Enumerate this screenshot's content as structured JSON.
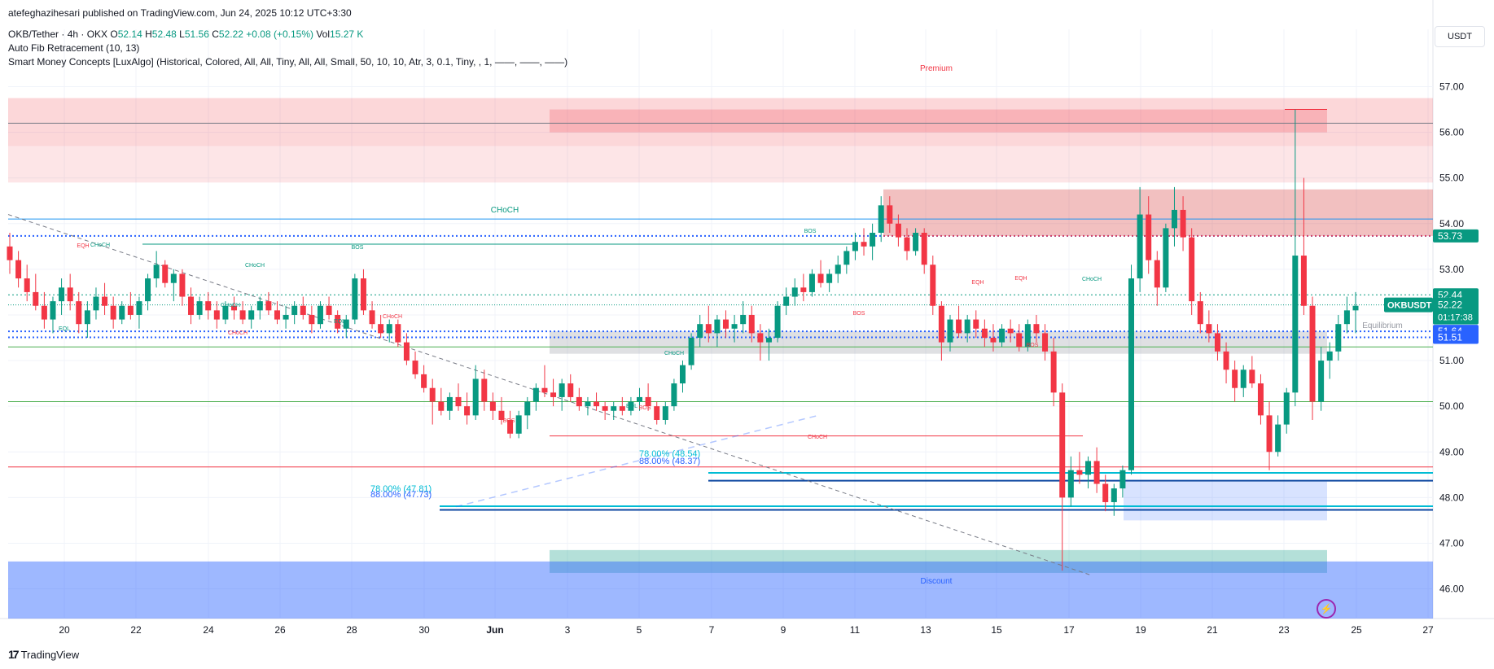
{
  "header": {
    "publisher": "atefeghazihesari published on TradingView.com, Jun 24, 2025 10:12 UTC+3:30",
    "symbol_line": "OKB/Tether · 4h · OKX",
    "o_label": "O",
    "o": "52.14",
    "h_label": "H",
    "h": "52.48",
    "l_label": "L",
    "l": "51.56",
    "c_label": "C",
    "c": "52.22",
    "change": "+0.08 (+0.15%)",
    "vol_label": "Vol",
    "vol": "15.27 K",
    "indicator1": "Auto Fib Retracement (10, 13)",
    "indicator2": "Smart Money Concepts [LuxAlgo] (Historical, Colored, All, All, Tiny, All, All, Small, 50, 10, 10, Atr, 3, 0.1, Tiny, , 1, ——, ——, ——)"
  },
  "currency_button": "USDT",
  "footer_logo": "TradingView",
  "footer_mark": "17",
  "bolt_icon": "⚡",
  "chart_data": {
    "type": "candlestick",
    "symbol": "OKBUSDT",
    "current_price": "52.22",
    "countdown": "01:17:38",
    "y_ticks": [
      "57.00",
      "56.00",
      "55.00",
      "54.00",
      "53.00",
      "52.00",
      "51.00",
      "50.00",
      "49.00",
      "48.00",
      "47.00",
      "46.00"
    ],
    "x_ticks": [
      "20",
      "22",
      "24",
      "26",
      "28",
      "30",
      "Jun",
      "3",
      "5",
      "7",
      "9",
      "11",
      "13",
      "15",
      "17",
      "19",
      "21",
      "23",
      "25",
      "27"
    ],
    "price_tags": [
      {
        "value": 53.73,
        "label": "53.73",
        "color": "#089981"
      },
      {
        "value": 52.44,
        "label": "52.44",
        "color": "#089981"
      },
      {
        "value": 51.64,
        "label": "51.64",
        "color": "#2962ff"
      },
      {
        "value": 51.51,
        "label": "51.51",
        "color": "#2962ff"
      }
    ],
    "zones": [
      {
        "label": "Premium",
        "color": "#f23645"
      },
      {
        "label": "Equilibrium",
        "color": "#9598a1"
      },
      {
        "label": "Discount",
        "color": "#2962ff"
      }
    ],
    "structure_labels": [
      "CHoCH",
      "CHoCH",
      "CHoCH",
      "BOS",
      "BOS",
      "BOS",
      "CHoCH",
      "EQH",
      "EQL",
      "EQL",
      "CHoCH",
      "EQH",
      "EQH",
      "CHoCH",
      "BOS",
      "BOS",
      "EQL",
      "BOS",
      "CHoCH",
      "CHoCH",
      "CHoCH"
    ],
    "fib_labels": [
      {
        "text": "78.00% (48.54)",
        "color": "#00bcd4"
      },
      {
        "text": "88.00% (48.37)",
        "color": "#2962ff"
      },
      {
        "text": "78.00% (47.81)",
        "color": "#00bcd4"
      },
      {
        "text": "88.00% (47.73)",
        "color": "#2962ff"
      }
    ],
    "candles": [
      [
        53.5,
        53.8,
        52.9,
        53.2
      ],
      [
        53.2,
        53.4,
        52.6,
        52.8
      ],
      [
        52.8,
        53.1,
        52.3,
        52.5
      ],
      [
        52.5,
        52.9,
        52.1,
        52.2
      ],
      [
        52.2,
        52.5,
        51.7,
        51.9
      ],
      [
        51.9,
        52.4,
        51.6,
        52.3
      ],
      [
        52.3,
        52.8,
        52.0,
        52.6
      ],
      [
        52.6,
        52.9,
        52.1,
        52.3
      ],
      [
        52.3,
        52.5,
        51.6,
        51.8
      ],
      [
        51.8,
        52.3,
        51.5,
        52.1
      ],
      [
        52.1,
        52.6,
        51.9,
        52.4
      ],
      [
        52.4,
        52.7,
        52.0,
        52.2
      ],
      [
        52.2,
        52.4,
        51.7,
        51.9
      ],
      [
        51.9,
        52.3,
        51.8,
        52.2
      ],
      [
        52.2,
        52.5,
        51.9,
        52.0
      ],
      [
        52.0,
        52.4,
        51.7,
        52.3
      ],
      [
        52.3,
        52.9,
        52.1,
        52.8
      ],
      [
        52.8,
        53.4,
        52.6,
        53.1
      ],
      [
        53.1,
        53.2,
        52.6,
        52.7
      ],
      [
        52.7,
        53.0,
        52.3,
        52.9
      ],
      [
        52.9,
        53.0,
        52.2,
        52.4
      ],
      [
        52.4,
        52.6,
        51.8,
        52.0
      ],
      [
        52.0,
        52.4,
        51.9,
        52.3
      ],
      [
        52.3,
        52.5,
        51.9,
        52.1
      ],
      [
        52.1,
        52.3,
        51.7,
        51.9
      ],
      [
        51.9,
        52.3,
        51.8,
        52.2
      ],
      [
        52.2,
        52.4,
        51.9,
        52.1
      ],
      [
        52.1,
        52.3,
        51.8,
        51.9
      ],
      [
        51.9,
        52.2,
        51.7,
        52.1
      ],
      [
        52.1,
        52.4,
        51.9,
        52.3
      ],
      [
        52.3,
        52.5,
        52.0,
        52.1
      ],
      [
        52.1,
        52.3,
        51.8,
        51.9
      ],
      [
        51.9,
        52.2,
        51.7,
        52.0
      ],
      [
        52.0,
        52.3,
        51.8,
        52.2
      ],
      [
        52.2,
        52.4,
        51.9,
        52.0
      ],
      [
        52.0,
        52.2,
        51.6,
        51.8
      ],
      [
        51.8,
        52.3,
        51.7,
        52.2
      ],
      [
        52.2,
        52.4,
        51.9,
        52.0
      ],
      [
        52.0,
        52.1,
        51.6,
        51.7
      ],
      [
        51.7,
        52.0,
        51.5,
        51.9
      ],
      [
        51.9,
        52.9,
        51.8,
        52.8
      ],
      [
        52.8,
        53.0,
        52.0,
        52.1
      ],
      [
        52.1,
        52.3,
        51.7,
        51.8
      ],
      [
        51.8,
        52.0,
        51.5,
        51.6
      ],
      [
        51.6,
        51.9,
        51.4,
        51.8
      ],
      [
        51.8,
        51.9,
        51.3,
        51.4
      ],
      [
        51.4,
        51.6,
        50.9,
        51.0
      ],
      [
        51.0,
        51.2,
        50.6,
        50.7
      ],
      [
        50.7,
        50.9,
        50.3,
        50.4
      ],
      [
        50.4,
        50.6,
        49.6,
        50.1
      ],
      [
        50.1,
        50.4,
        49.8,
        49.9
      ],
      [
        49.9,
        50.3,
        49.7,
        50.2
      ],
      [
        50.2,
        50.5,
        49.9,
        50.0
      ],
      [
        50.0,
        50.3,
        49.6,
        49.8
      ],
      [
        49.8,
        50.9,
        49.7,
        50.6
      ],
      [
        50.6,
        50.8,
        49.9,
        50.1
      ],
      [
        50.1,
        50.3,
        49.7,
        49.9
      ],
      [
        49.9,
        50.2,
        49.6,
        49.7
      ],
      [
        49.7,
        49.9,
        49.3,
        49.4
      ],
      [
        49.4,
        49.9,
        49.3,
        49.8
      ],
      [
        49.8,
        50.2,
        49.5,
        50.1
      ],
      [
        50.1,
        50.5,
        49.9,
        50.4
      ],
      [
        50.4,
        50.9,
        50.2,
        50.3
      ],
      [
        50.3,
        50.6,
        50.0,
        50.2
      ],
      [
        50.2,
        50.6,
        49.9,
        50.5
      ],
      [
        50.5,
        50.7,
        50.1,
        50.2
      ],
      [
        50.2,
        50.4,
        49.9,
        50.0
      ],
      [
        50.0,
        50.2,
        49.8,
        50.1
      ],
      [
        50.1,
        50.3,
        49.9,
        50.0
      ],
      [
        50.0,
        50.1,
        49.7,
        49.9
      ],
      [
        49.9,
        50.1,
        49.7,
        50.0
      ],
      [
        50.0,
        50.2,
        49.8,
        49.9
      ],
      [
        49.9,
        50.2,
        49.8,
        50.1
      ],
      [
        50.1,
        50.4,
        49.9,
        50.2
      ],
      [
        50.2,
        50.5,
        49.9,
        50.0
      ],
      [
        50.0,
        50.1,
        49.6,
        49.7
      ],
      [
        49.7,
        50.1,
        49.6,
        50.0
      ],
      [
        50.0,
        50.6,
        49.9,
        50.5
      ],
      [
        50.5,
        51.0,
        50.3,
        50.9
      ],
      [
        50.9,
        51.6,
        50.8,
        51.5
      ],
      [
        51.5,
        52.0,
        51.3,
        51.8
      ],
      [
        51.8,
        52.2,
        51.4,
        51.6
      ],
      [
        51.6,
        52.0,
        51.3,
        51.9
      ],
      [
        51.9,
        52.1,
        51.5,
        51.7
      ],
      [
        51.7,
        52.0,
        51.4,
        51.8
      ],
      [
        51.8,
        52.3,
        51.6,
        52.0
      ],
      [
        52.0,
        52.2,
        51.4,
        51.6
      ],
      [
        51.6,
        51.8,
        51.0,
        51.4
      ],
      [
        51.4,
        51.7,
        51.0,
        51.5
      ],
      [
        51.5,
        52.3,
        51.4,
        52.2
      ],
      [
        52.2,
        52.6,
        52.0,
        52.4
      ],
      [
        52.4,
        52.8,
        52.2,
        52.6
      ],
      [
        52.6,
        52.9,
        52.3,
        52.5
      ],
      [
        52.5,
        53.0,
        52.4,
        52.9
      ],
      [
        52.9,
        53.2,
        52.6,
        52.7
      ],
      [
        52.7,
        53.0,
        52.5,
        52.9
      ],
      [
        52.9,
        53.3,
        52.7,
        53.1
      ],
      [
        53.1,
        53.5,
        52.9,
        53.4
      ],
      [
        53.4,
        53.8,
        53.2,
        53.6
      ],
      [
        53.6,
        53.9,
        53.3,
        53.5
      ],
      [
        53.5,
        54.0,
        53.2,
        53.8
      ],
      [
        53.8,
        54.6,
        53.6,
        54.4
      ],
      [
        54.4,
        54.6,
        53.8,
        54.0
      ],
      [
        54.0,
        54.2,
        53.5,
        53.7
      ],
      [
        53.7,
        53.9,
        53.2,
        53.4
      ],
      [
        53.4,
        53.9,
        53.3,
        53.8
      ],
      [
        53.8,
        53.9,
        52.9,
        53.1
      ],
      [
        53.1,
        53.3,
        52.0,
        52.2
      ],
      [
        52.2,
        52.3,
        51.0,
        51.4
      ],
      [
        51.4,
        52.0,
        51.2,
        51.9
      ],
      [
        51.9,
        52.2,
        51.5,
        51.6
      ],
      [
        51.6,
        52.0,
        51.4,
        51.9
      ],
      [
        51.9,
        52.1,
        51.5,
        51.7
      ],
      [
        51.7,
        51.9,
        51.3,
        51.5
      ],
      [
        51.5,
        51.8,
        51.2,
        51.4
      ],
      [
        51.4,
        51.8,
        51.3,
        51.7
      ],
      [
        51.7,
        51.9,
        51.4,
        51.6
      ],
      [
        51.6,
        51.8,
        51.2,
        51.3
      ],
      [
        51.3,
        51.9,
        51.2,
        51.8
      ],
      [
        51.8,
        52.0,
        51.4,
        51.6
      ],
      [
        51.6,
        51.8,
        51.0,
        51.2
      ],
      [
        51.2,
        51.5,
        50.0,
        50.3
      ],
      [
        50.3,
        50.5,
        46.4,
        48.0
      ],
      [
        48.0,
        48.9,
        47.8,
        48.6
      ],
      [
        48.6,
        49.0,
        48.3,
        48.5
      ],
      [
        48.5,
        48.9,
        48.2,
        48.8
      ],
      [
        48.8,
        49.1,
        48.1,
        48.3
      ],
      [
        48.3,
        48.5,
        47.7,
        47.9
      ],
      [
        47.9,
        48.3,
        47.6,
        48.2
      ],
      [
        48.2,
        48.7,
        48.0,
        48.6
      ],
      [
        48.6,
        53.1,
        48.5,
        52.8
      ],
      [
        52.8,
        54.8,
        52.5,
        54.2
      ],
      [
        54.2,
        54.6,
        52.9,
        53.2
      ],
      [
        53.2,
        53.4,
        52.2,
        52.6
      ],
      [
        52.6,
        54.0,
        52.5,
        53.9
      ],
      [
        53.9,
        54.8,
        53.5,
        54.3
      ],
      [
        54.3,
        54.6,
        53.4,
        53.7
      ],
      [
        53.7,
        53.9,
        52.0,
        52.3
      ],
      [
        52.3,
        52.5,
        51.6,
        51.8
      ],
      [
        51.8,
        52.1,
        51.4,
        51.6
      ],
      [
        51.6,
        51.8,
        51.0,
        51.2
      ],
      [
        51.2,
        51.4,
        50.5,
        50.8
      ],
      [
        50.8,
        51.0,
        50.1,
        50.4
      ],
      [
        50.4,
        50.9,
        50.2,
        50.8
      ],
      [
        50.8,
        51.1,
        50.4,
        50.5
      ],
      [
        50.5,
        50.7,
        49.6,
        49.8
      ],
      [
        49.8,
        50.1,
        48.6,
        49.0
      ],
      [
        49.0,
        49.8,
        48.9,
        49.6
      ],
      [
        49.6,
        50.4,
        49.4,
        50.3
      ],
      [
        50.3,
        56.5,
        50.0,
        53.3
      ],
      [
        53.3,
        55.0,
        52.0,
        52.2
      ],
      [
        52.2,
        52.4,
        49.7,
        50.1
      ],
      [
        50.1,
        51.3,
        49.9,
        51.0
      ],
      [
        51.0,
        51.4,
        50.6,
        51.2
      ],
      [
        51.2,
        52.0,
        51.0,
        51.8
      ],
      [
        51.8,
        52.4,
        51.6,
        52.1
      ],
      [
        52.1,
        52.5,
        51.6,
        52.2
      ]
    ]
  }
}
